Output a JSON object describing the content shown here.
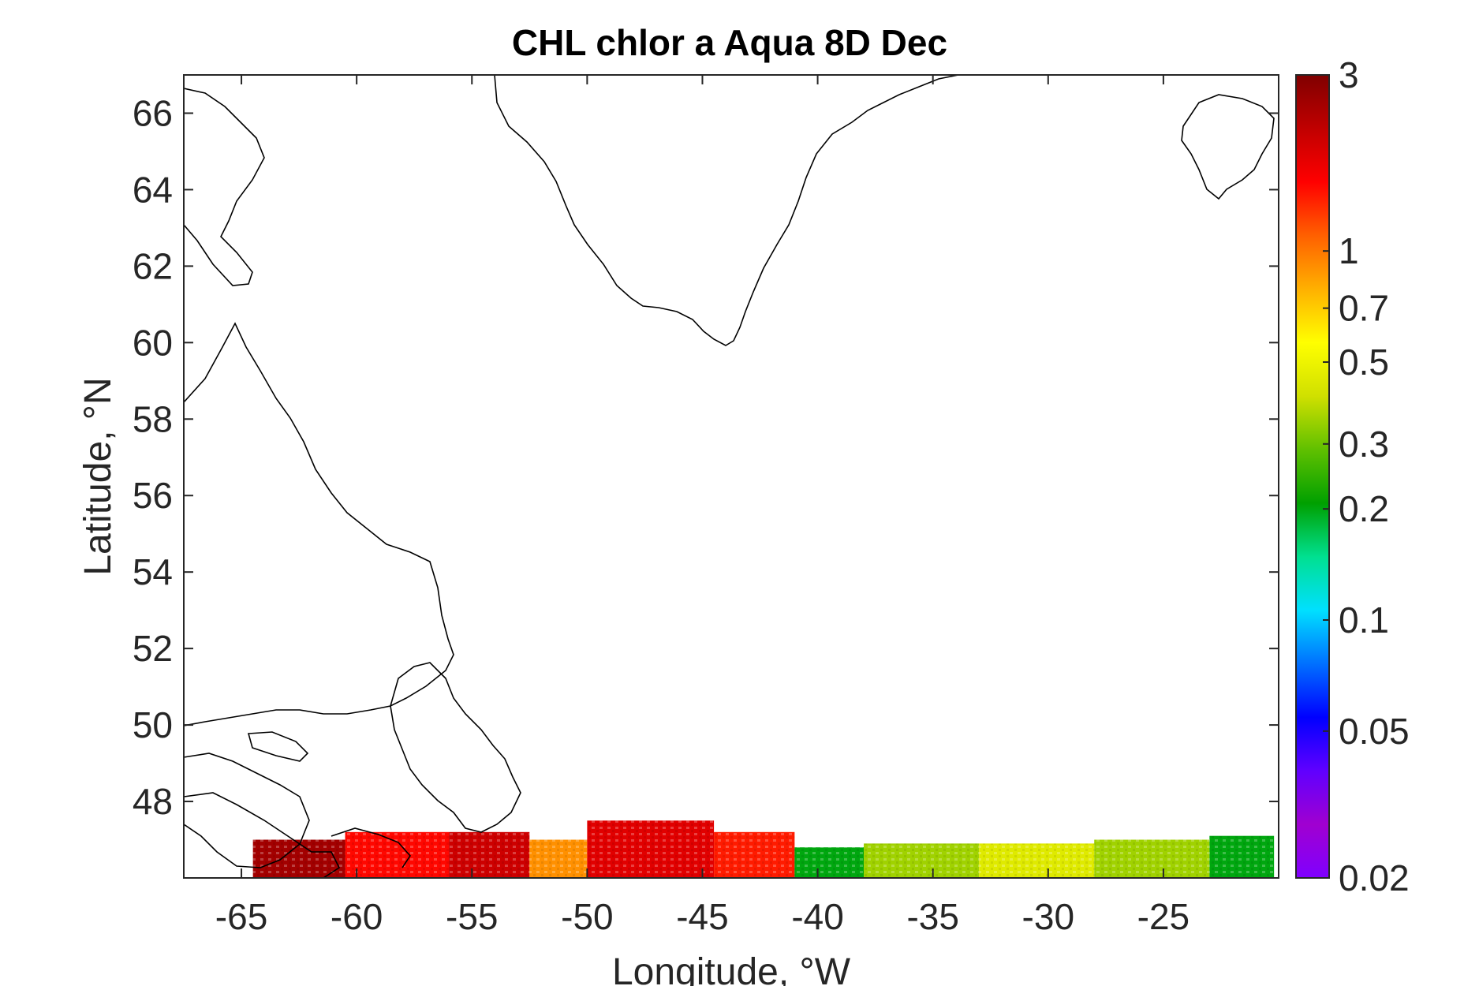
{
  "title": "CHL chlor a Aqua 8D Dec",
  "axes": {
    "xlabel": "Longitude, °W",
    "ylabel": "Latitude, °N",
    "xlim": [
      -67.5,
      -20
    ],
    "ylim": [
      46,
      67
    ],
    "xticks": [
      {
        "value": -65,
        "label": "-65"
      },
      {
        "value": -60,
        "label": "-60"
      },
      {
        "value": -55,
        "label": "-55"
      },
      {
        "value": -50,
        "label": "-50"
      },
      {
        "value": -45,
        "label": "-45"
      },
      {
        "value": -40,
        "label": "-40"
      },
      {
        "value": -35,
        "label": "-35"
      },
      {
        "value": -30,
        "label": "-30"
      },
      {
        "value": -25,
        "label": "-25"
      }
    ],
    "yticks": [
      {
        "value": 48,
        "label": "48"
      },
      {
        "value": 50,
        "label": "50"
      },
      {
        "value": 52,
        "label": "52"
      },
      {
        "value": 54,
        "label": "54"
      },
      {
        "value": 56,
        "label": "56"
      },
      {
        "value": 58,
        "label": "58"
      },
      {
        "value": 60,
        "label": "60"
      },
      {
        "value": 62,
        "label": "62"
      },
      {
        "value": 64,
        "label": "64"
      },
      {
        "value": 66,
        "label": "66"
      }
    ]
  },
  "colorbar": {
    "scale": "log",
    "range": [
      0.02,
      3
    ],
    "ticks": [
      {
        "value": 3,
        "label": "3"
      },
      {
        "value": 1,
        "label": "1"
      },
      {
        "value": 0.7,
        "label": "0.7"
      },
      {
        "value": 0.5,
        "label": "0.5"
      },
      {
        "value": 0.3,
        "label": "0.3"
      },
      {
        "value": 0.2,
        "label": "0.2"
      },
      {
        "value": 0.1,
        "label": "0.1"
      },
      {
        "value": 0.05,
        "label": "0.05"
      },
      {
        "value": 0.02,
        "label": "0.02"
      }
    ],
    "colormap": [
      "#7f00ff",
      "#a000d0",
      "#6000ff",
      "#0000ff",
      "#0070ff",
      "#00e0ff",
      "#00e090",
      "#00a000",
      "#60c000",
      "#d0e000",
      "#ffff00",
      "#ffb000",
      "#ff6000",
      "#ff0000",
      "#c00000",
      "#800000"
    ]
  },
  "chart_data": {
    "type": "heatmap",
    "title": "CHL chlor a Aqua 8D Dec",
    "xlabel": "Longitude, °W",
    "ylabel": "Latitude, °N",
    "xlim": [
      -67.5,
      -20
    ],
    "ylim": [
      46,
      67
    ],
    "color_scale": "log",
    "clim": [
      0.02,
      3
    ],
    "series": [
      {
        "lon_range": [
          -64.5,
          -60.5
        ],
        "lat_range": [
          46,
          47
        ],
        "chl": 2.5
      },
      {
        "lon_range": [
          -60.5,
          -56
        ],
        "lat_range": [
          46,
          47.2
        ],
        "chl": 1.5
      },
      {
        "lon_range": [
          -56,
          -52.5
        ],
        "lat_range": [
          46,
          47.2
        ],
        "chl": 2.0
      },
      {
        "lon_range": [
          -52.5,
          -50
        ],
        "lat_range": [
          46,
          47
        ],
        "chl": 0.9
      },
      {
        "lon_range": [
          -50,
          -44.5
        ],
        "lat_range": [
          46,
          47.5
        ],
        "chl": 1.8
      },
      {
        "lon_range": [
          -44.5,
          -41
        ],
        "lat_range": [
          46,
          47.2
        ],
        "chl": 1.4
      },
      {
        "lon_range": [
          -41,
          -38
        ],
        "lat_range": [
          46,
          46.8
        ],
        "chl": 0.2
      },
      {
        "lon_range": [
          -38,
          -33
        ],
        "lat_range": [
          46,
          46.9
        ],
        "chl": 0.35
      },
      {
        "lon_range": [
          -33,
          -28
        ],
        "lat_range": [
          46,
          46.9
        ],
        "chl": 0.45
      },
      {
        "lon_range": [
          -28,
          -23
        ],
        "lat_range": [
          46,
          47
        ],
        "chl": 0.35
      },
      {
        "lon_range": [
          -23,
          -20.2
        ],
        "lat_range": [
          46,
          47.1
        ],
        "chl": 0.2
      }
    ]
  }
}
